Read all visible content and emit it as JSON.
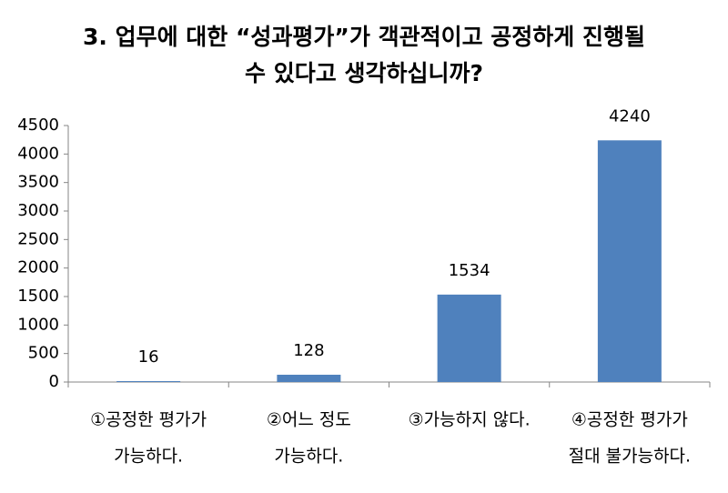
{
  "chart_data": {
    "type": "bar",
    "title": [
      "3. 업무에 대한 “성과평가”가 객관적이고 공정하게 진행될",
      "수 있다고 생각하십니까?"
    ],
    "categories": [
      [
        "①공정한 평가가",
        "가능하다."
      ],
      [
        "②어느 정도",
        "가능하다."
      ],
      [
        "③가능하지 않다."
      ],
      [
        "④공정한 평가가",
        "절대 불가능하다."
      ]
    ],
    "values": [
      16,
      128,
      1534,
      4240
    ],
    "color": "#4f81bd",
    "ylim": [
      0,
      4500
    ],
    "yticks": [
      0,
      500,
      1000,
      1500,
      2000,
      2500,
      3000,
      3500,
      4000,
      4500
    ],
    "grid": false
  }
}
